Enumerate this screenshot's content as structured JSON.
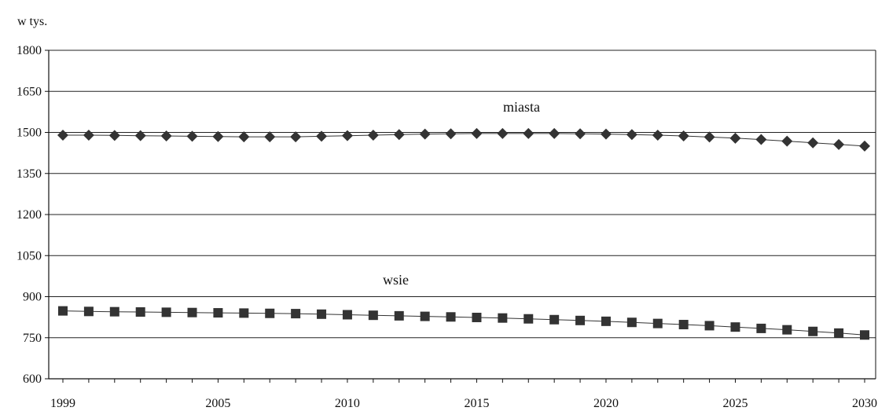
{
  "chart_data": {
    "type": "line",
    "title": "",
    "xlabel": "",
    "ylabel": "w tys.",
    "xlim": [
      1999,
      2030
    ],
    "ylim": [
      600,
      1800
    ],
    "yticks": [
      600,
      750,
      900,
      1050,
      1200,
      1350,
      1500,
      1650,
      1800
    ],
    "xticks": [
      1999,
      2005,
      2010,
      2015,
      2020,
      2025,
      2030
    ],
    "grid": "horizontal",
    "x": [
      1999,
      2000,
      2001,
      2002,
      2003,
      2004,
      2005,
      2006,
      2007,
      2008,
      2009,
      2010,
      2011,
      2012,
      2013,
      2014,
      2015,
      2016,
      2017,
      2018,
      2019,
      2020,
      2021,
      2022,
      2023,
      2024,
      2025,
      2026,
      2027,
      2028,
      2029,
      2030
    ],
    "series": [
      {
        "name": "miasta",
        "marker": "diamond",
        "values": [
          1490,
          1490,
          1489,
          1488,
          1487,
          1486,
          1485,
          1484,
          1484,
          1484,
          1486,
          1488,
          1490,
          1492,
          1494,
          1495,
          1496,
          1496,
          1496,
          1496,
          1495,
          1494,
          1492,
          1490,
          1487,
          1483,
          1479,
          1474,
          1468,
          1462,
          1456,
          1450
        ]
      },
      {
        "name": "wsie",
        "marker": "square",
        "values": [
          848,
          846,
          845,
          844,
          843,
          842,
          841,
          840,
          839,
          838,
          836,
          834,
          832,
          830,
          828,
          826,
          824,
          822,
          819,
          816,
          813,
          810,
          806,
          802,
          798,
          794,
          789,
          784,
          779,
          773,
          767,
          760
        ]
      }
    ],
    "colors": {
      "marker": "#333333",
      "line": "#333333",
      "grid": "#222222",
      "axis": "#111111"
    }
  }
}
